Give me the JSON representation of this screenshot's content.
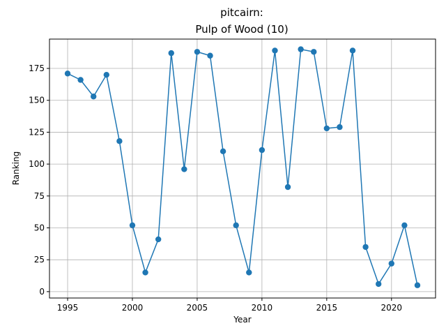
{
  "chart_data": {
    "type": "line",
    "title_line1": "pitcairn:",
    "title_line2": "Pulp of Wood (10)",
    "xlabel": "Year",
    "ylabel": "Ranking",
    "xlim": [
      1993.6,
      2023.4
    ],
    "ylim": [
      -5,
      198
    ],
    "xticks": [
      1995,
      2000,
      2005,
      2010,
      2015,
      2020
    ],
    "yticks": [
      0,
      25,
      50,
      75,
      100,
      125,
      150,
      175
    ],
    "grid": true,
    "color": "#1f77b4",
    "series": [
      {
        "x": [
          1995,
          1996,
          1997,
          1998,
          1999,
          2000,
          2001,
          2002,
          2003,
          2004,
          2005,
          2006,
          2007,
          2008,
          2009,
          2010,
          2011,
          2012,
          2013,
          2014,
          2015,
          2016,
          2017,
          2018,
          2019,
          2020,
          2021,
          2022
        ],
        "y": [
          171,
          166,
          153,
          170,
          118,
          52,
          15,
          41,
          187,
          96,
          188,
          185,
          110,
          52,
          15,
          111,
          189,
          82,
          190,
          188,
          128,
          129,
          189,
          35,
          6,
          22,
          52,
          5
        ]
      }
    ]
  }
}
